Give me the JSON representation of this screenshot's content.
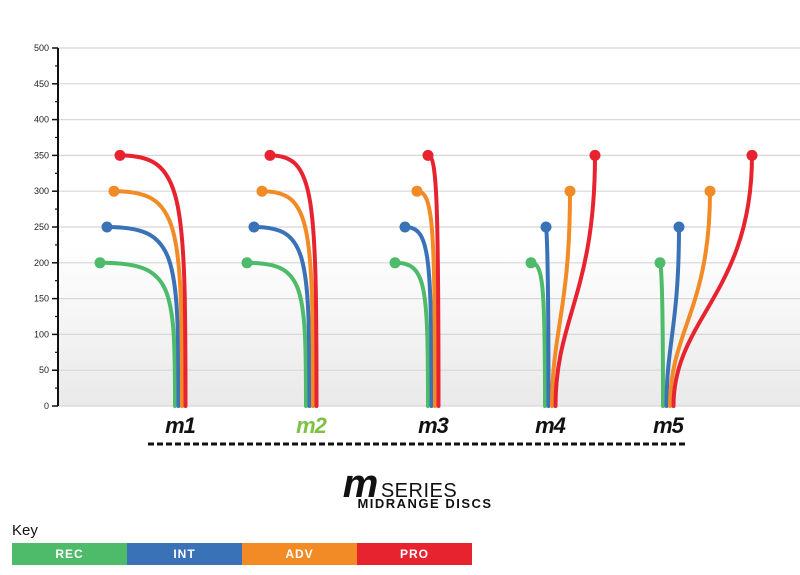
{
  "chart_data": {
    "type": "line",
    "y_axis": {
      "min": 0,
      "max": 500,
      "ticks": [
        0,
        50,
        100,
        150,
        200,
        250,
        300,
        350,
        400,
        450,
        500
      ],
      "grid": true
    },
    "categories": [
      "m1",
      "m2",
      "m3",
      "m4",
      "m5"
    ],
    "highlighted_category": "m2",
    "series": [
      {
        "name": "REC",
        "color": "#4dbb6a",
        "values": [
          200,
          200,
          200,
          200,
          200
        ]
      },
      {
        "name": "INT",
        "color": "#3a72b8",
        "values": [
          250,
          250,
          250,
          250,
          250
        ]
      },
      {
        "name": "ADV",
        "color": "#f28a25",
        "values": [
          300,
          300,
          300,
          300,
          300
        ]
      },
      {
        "name": "PRO",
        "color": "#e82330",
        "values": [
          350,
          350,
          350,
          350,
          350
        ]
      }
    ]
  },
  "logo": {
    "letter": "m",
    "word": "SERIES"
  },
  "subtitle": "MIDRANGE DISCS",
  "key": {
    "title": "Key",
    "items": [
      {
        "label": "REC",
        "color": "#4dbb6a"
      },
      {
        "label": "INT",
        "color": "#3a72b8"
      },
      {
        "label": "ADV",
        "color": "#f28a25"
      },
      {
        "label": "PRO",
        "color": "#e82330"
      }
    ]
  },
  "colors": {
    "highlight_label": "#7dc242",
    "label": "#111111",
    "grid": "#d7d7d7"
  }
}
